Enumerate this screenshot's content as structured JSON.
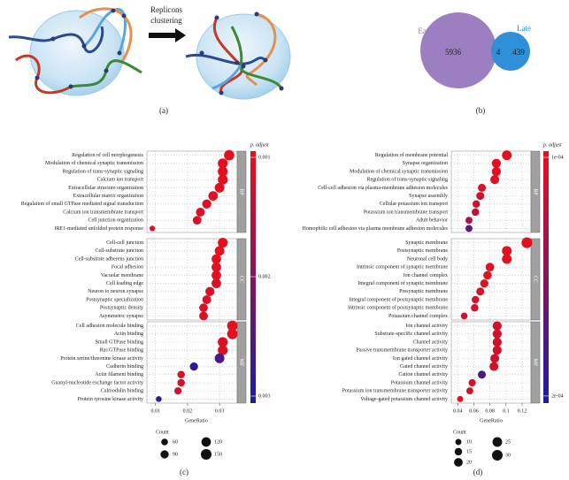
{
  "panel_labels": [
    "(a)",
    "(b)",
    "(c)",
    "(d)"
  ],
  "diagram": {
    "caption_lines": [
      "Replicons",
      "clustering"
    ]
  },
  "venn": {
    "sets": [
      {
        "name": "Early",
        "color": "#9b7fc0",
        "only": 5936
      },
      {
        "name": "Late",
        "color": "#2f8fd8",
        "only": 439
      }
    ],
    "overlap": 4
  },
  "chart_data": [
    {
      "type": "dotplot",
      "x_label": "GeneRatio",
      "xlim": [
        0.0073,
        0.0355
      ],
      "xticks": [
        0.01,
        0.02,
        0.03
      ],
      "colorbar": {
        "title": "p. adjust",
        "lim": [
          0.000948,
          0.003059
        ],
        "ticks": [
          0.001,
          0.002,
          0.003
        ],
        "colors": [
          "#e8101c",
          "#1c1c9c"
        ]
      },
      "size_legend": {
        "title": "Count",
        "values": [
          60,
          90,
          120,
          150
        ]
      },
      "facets": [
        {
          "name": "BP",
          "categories": [
            "Regulation of cell morphogenesis",
            "Modulation of chemical synaptic transmission",
            "Regulation of trans-synaptic signaling",
            "Calcium ion transport",
            "Extracellular structure organization",
            "Extracellular matrix organization",
            "Regulation of small GTPase mediated signal transduction",
            "Calcium ion transmembrane transport",
            "Cell junction organization",
            "IRE1-mediated unfolded protein response"
          ],
          "values": [
            0.033,
            0.031,
            0.031,
            0.031,
            0.03,
            0.028,
            0.026,
            0.024,
            0.023,
            0.009
          ],
          "sizes": [
            140,
            130,
            130,
            130,
            125,
            120,
            110,
            105,
            100,
            40
          ],
          "p_adjust": [
            0.001,
            0.001,
            0.001,
            0.001,
            0.001,
            0.001,
            0.0011,
            0.0011,
            0.0011,
            0.0011
          ]
        },
        {
          "name": "CC",
          "categories": [
            "Cell-cell junction",
            "Cell-substrate junction",
            "Cell-substrate adherens junction",
            "Focal adhesion",
            "Vacuolar membrane",
            "Cell leading edge",
            "Neuron to neuron synapse",
            "Postsynaptic specialization",
            "Postsynaptic density",
            "Asymmetric synapse"
          ],
          "values": [
            0.031,
            0.03,
            0.029,
            0.029,
            0.029,
            0.029,
            0.027,
            0.026,
            0.025,
            0.025
          ],
          "sizes": [
            130,
            125,
            120,
            120,
            120,
            120,
            110,
            105,
            100,
            100
          ],
          "p_adjust": [
            0.001,
            0.001,
            0.001,
            0.001,
            0.001,
            0.0011,
            0.0011,
            0.0011,
            0.0011,
            0.0011
          ]
        },
        {
          "name": "MF",
          "categories": [
            "Cell adhesion molecule binding",
            "Actin binding",
            "Small GTPase binding",
            "Ras GTPase binding",
            "Protein serine/threonine kinase activity",
            "Cadherin binding",
            "Actin filament binding",
            "Guanyl-nucleotide exchange factor activity",
            "Calmodulin binding",
            "Protein tyrosine kinase activity"
          ],
          "values": [
            0.034,
            0.034,
            0.031,
            0.031,
            0.03,
            0.022,
            0.018,
            0.018,
            0.017,
            0.011
          ],
          "sizes": [
            145,
            145,
            130,
            130,
            125,
            90,
            75,
            75,
            70,
            45
          ],
          "p_adjust": [
            0.001,
            0.001,
            0.0011,
            0.0011,
            0.0026,
            0.0029,
            0.0011,
            0.0011,
            0.0012,
            0.0029
          ]
        }
      ]
    },
    {
      "type": "dotplot",
      "x_label": "GeneRatio",
      "xlim": [
        0.032,
        0.131
      ],
      "xticks": [
        0.04,
        0.06,
        0.08,
        0.1,
        0.12
      ],
      "colorbar": {
        "title": "p. adjust",
        "lim": [
          9.74e-05,
          0.000203
        ],
        "ticks": [
          {
            "value": 0.0001,
            "label": "1e-04"
          },
          {
            "value": 0.0002,
            "label": "2e-04"
          }
        ],
        "colors": [
          "#e8101c",
          "#1c1c9c"
        ]
      },
      "size_legend": {
        "title": "Count",
        "values": [
          10,
          15,
          20,
          25,
          30
        ]
      },
      "facets": [
        {
          "name": "BP",
          "categories": [
            "Regulation of membrane potential",
            "Synapse organization",
            "Modulation of chemical synaptic transmission",
            "Regulation of trans-synaptic signaling",
            "Cell-cell adhesion via plasma-membrane adhesion molecules",
            "Synapse assembly",
            "Cellular potassium ion transport",
            "Potassium ion transmembrane transport",
            "Adult behavior",
            "Homophilic cell adhesion via plasma membrane adhesion molecules"
          ],
          "values": [
            0.101,
            0.088,
            0.088,
            0.086,
            0.07,
            0.068,
            0.063,
            0.062,
            0.054,
            0.054
          ],
          "sizes": [
            25,
            22,
            22,
            21,
            17,
            17,
            15,
            15,
            13,
            13
          ],
          "p_adjust": [
            0.0001,
            0.0001,
            0.0001,
            0.0001,
            0.000105,
            0.00011,
            0.00011,
            0.00012,
            0.00013,
            0.00017
          ]
        },
        {
          "name": "CC",
          "categories": [
            "Synaptic membrane",
            "Postsynaptic membrane",
            "Neuronal cell body",
            "Intrinsic component of synaptic membrane",
            "Ion channel complex",
            "Integral component of synaptic membrane",
            "Presynaptic membrane",
            "Integral component of postsynaptic membrane",
            "Intrinsic component of postsynaptic membrane",
            "Potassium channel complex"
          ],
          "values": [
            0.126,
            0.101,
            0.101,
            0.08,
            0.077,
            0.073,
            0.068,
            0.062,
            0.061,
            0.048
          ],
          "sizes": [
            31,
            25,
            25,
            20,
            19,
            18,
            17,
            15,
            15,
            12
          ],
          "p_adjust": [
            0.0001,
            0.0001,
            0.0001,
            0.0001,
            0.0001,
            0.0001,
            0.000105,
            0.000105,
            0.000105,
            0.00011
          ]
        },
        {
          "name": "MF",
          "categories": [
            "Ion channel activity",
            "Substrate-specific channel activity",
            "Channel activity",
            "Passive transmembrane transporter activity",
            "Ion gated channel activity",
            "Gated channel activity",
            "Cation channel activity",
            "Potassium channel activity",
            "Potassium ion transmembrane transporter activity",
            "Voltage-gated potassium channel activity"
          ],
          "values": [
            0.089,
            0.089,
            0.089,
            0.089,
            0.086,
            0.085,
            0.07,
            0.058,
            0.055,
            0.043
          ],
          "sizes": [
            22,
            22,
            22,
            22,
            21,
            21,
            17,
            14,
            13,
            10
          ],
          "p_adjust": [
            0.00011,
            0.00011,
            0.00011,
            0.00011,
            0.00011,
            0.00011,
            0.00018,
            0.00011,
            0.00011,
            0.0001
          ]
        }
      ]
    }
  ]
}
